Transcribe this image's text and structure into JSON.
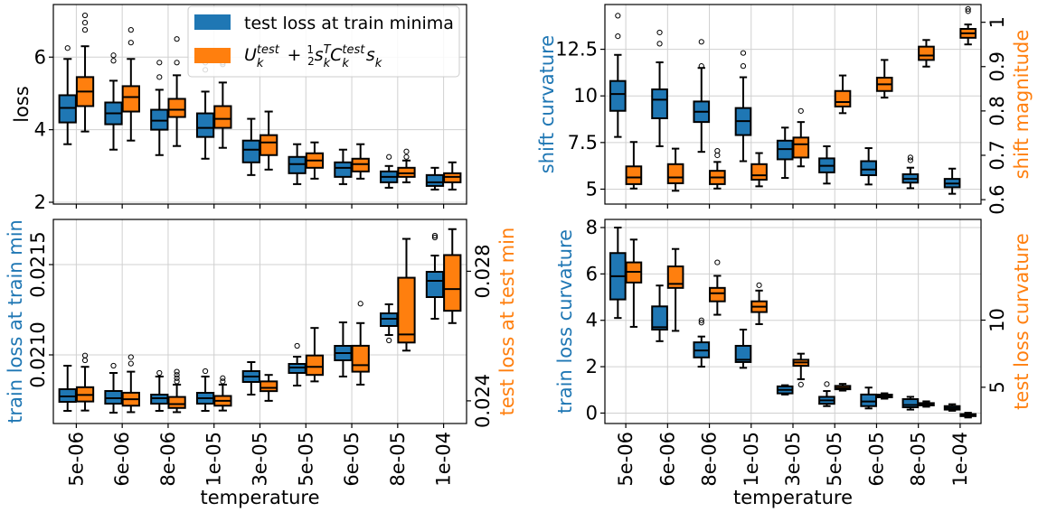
{
  "figure": {
    "xlabel": "temperature",
    "temperatures": [
      "5e-06",
      "6e-06",
      "8e-06",
      "1e-05",
      "3e-05",
      "5e-05",
      "6e-05",
      "8e-05",
      "1e-04"
    ],
    "colors": {
      "blue": "#1f77b4",
      "orange": "#ff7f0e"
    }
  },
  "chart_data": [
    {
      "type": "box",
      "ylabel": "loss",
      "ylim": [
        1.95,
        7.45
      ],
      "yticks": [
        2,
        4,
        6
      ],
      "legend": {
        "placement": "top-center",
        "entries": [
          {
            "label": "test loss at train minima",
            "color": "#1f77b4"
          },
          {
            "label": "U_k^test + 1/2 s_k^T C_k^test s_k",
            "color": "#ff7f0e"
          }
        ]
      },
      "series": [
        {
          "name": "test loss at train minima",
          "axis": "left",
          "boxes": [
            {
              "whislo": 3.6,
              "q1": 4.2,
              "med": 4.6,
              "q3": 4.95,
              "whishi": 5.95,
              "fliers": [
                6.25
              ]
            },
            {
              "whislo": 3.45,
              "q1": 4.15,
              "med": 4.45,
              "q3": 4.75,
              "whishi": 5.35,
              "fliers": [
                5.9,
                6.05
              ]
            },
            {
              "whislo": 3.3,
              "q1": 4.0,
              "med": 4.25,
              "q3": 4.55,
              "whishi": 5.1,
              "fliers": [
                5.45,
                5.85
              ]
            },
            {
              "whislo": 3.2,
              "q1": 3.8,
              "med": 4.05,
              "q3": 4.45,
              "whishi": 5.05,
              "fliers": [
                5.65,
                5.85
              ]
            },
            {
              "whislo": 2.75,
              "q1": 3.1,
              "med": 3.45,
              "q3": 3.7,
              "whishi": 4.3,
              "fliers": []
            },
            {
              "whislo": 2.5,
              "q1": 2.8,
              "med": 3.05,
              "q3": 3.25,
              "whishi": 3.6,
              "fliers": []
            },
            {
              "whislo": 2.5,
              "q1": 2.7,
              "med": 2.95,
              "q3": 3.1,
              "whishi": 3.45,
              "fliers": []
            },
            {
              "whislo": 2.4,
              "q1": 2.55,
              "med": 2.7,
              "q3": 2.85,
              "whishi": 3.0,
              "fliers": [
                3.25
              ]
            },
            {
              "whislo": 2.35,
              "q1": 2.45,
              "med": 2.55,
              "q3": 2.75,
              "whishi": 2.95,
              "fliers": []
            }
          ]
        },
        {
          "name": "U_k^test + 1/2 s_k^T C_k^test s_k",
          "axis": "left",
          "boxes": [
            {
              "whislo": 3.95,
              "q1": 4.65,
              "med": 5.05,
              "q3": 5.45,
              "whishi": 6.3,
              "fliers": [
                6.75,
                6.95,
                7.15
              ]
            },
            {
              "whislo": 3.7,
              "q1": 4.5,
              "med": 4.9,
              "q3": 5.2,
              "whishi": 5.95,
              "fliers": [
                6.4,
                6.75
              ]
            },
            {
              "whislo": 3.55,
              "q1": 4.35,
              "med": 4.55,
              "q3": 4.85,
              "whishi": 5.5,
              "fliers": [
                5.85,
                6.5
              ]
            },
            {
              "whislo": 3.5,
              "q1": 4.05,
              "med": 4.3,
              "q3": 4.65,
              "whishi": 5.3,
              "fliers": [
                5.8,
                5.85,
                6.15
              ]
            },
            {
              "whislo": 2.9,
              "q1": 3.3,
              "med": 3.65,
              "q3": 3.85,
              "whishi": 4.5,
              "fliers": []
            },
            {
              "whislo": 2.65,
              "q1": 2.95,
              "med": 3.15,
              "q3": 3.35,
              "whishi": 3.65,
              "fliers": []
            },
            {
              "whislo": 2.65,
              "q1": 2.85,
              "med": 3.05,
              "q3": 3.2,
              "whishi": 3.6,
              "fliers": []
            },
            {
              "whislo": 2.55,
              "q1": 2.7,
              "med": 2.8,
              "q3": 2.95,
              "whishi": 3.15,
              "fliers": [
                3.25,
                3.4
              ]
            },
            {
              "whislo": 2.35,
              "q1": 2.55,
              "med": 2.7,
              "q3": 2.8,
              "whishi": 3.1,
              "fliers": []
            }
          ]
        }
      ]
    },
    {
      "type": "box",
      "ylabel": "shift curvature",
      "ylabel_right": "shift magnitude",
      "ylim": [
        4.2,
        14.9
      ],
      "yticks": [
        5.0,
        7.5,
        10.0,
        12.5
      ],
      "ylim_right": [
        0.59,
        1.04
      ],
      "yticks_right": [
        0.6,
        0.7,
        0.8,
        0.9,
        1.0
      ],
      "series": [
        {
          "name": "shift curvature",
          "axis": "left",
          "boxes": [
            {
              "whislo": 7.8,
              "q1": 9.2,
              "med": 10.1,
              "q3": 10.8,
              "whishi": 12.2,
              "fliers": [
                13.2,
                14.3
              ]
            },
            {
              "whislo": 7.3,
              "q1": 8.8,
              "med": 9.8,
              "q3": 10.35,
              "whishi": 11.8,
              "fliers": [
                12.8,
                13.4
              ]
            },
            {
              "whislo": 7.0,
              "q1": 8.6,
              "med": 9.15,
              "q3": 9.7,
              "whishi": 11.5,
              "fliers": [
                11.6,
                12.9
              ]
            },
            {
              "whislo": 6.5,
              "q1": 7.9,
              "med": 8.65,
              "q3": 9.35,
              "whishi": 11.0,
              "fliers": [
                11.6,
                12.3
              ]
            },
            {
              "whislo": 5.6,
              "q1": 6.6,
              "med": 7.15,
              "q3": 7.6,
              "whishi": 8.3,
              "fliers": []
            },
            {
              "whislo": 5.3,
              "q1": 5.9,
              "med": 6.25,
              "q3": 6.65,
              "whishi": 7.3,
              "fliers": []
            },
            {
              "whislo": 5.25,
              "q1": 5.75,
              "med": 6.05,
              "q3": 6.5,
              "whishi": 7.2,
              "fliers": []
            },
            {
              "whislo": 5.05,
              "q1": 5.35,
              "med": 5.55,
              "q3": 5.8,
              "whishi": 6.15,
              "fliers": [
                6.55,
                6.7
              ]
            },
            {
              "whislo": 4.75,
              "q1": 5.1,
              "med": 5.3,
              "q3": 5.55,
              "whishi": 6.1,
              "fliers": []
            }
          ]
        },
        {
          "name": "shift magnitude",
          "axis": "right",
          "boxes": [
            {
              "whislo": 0.625,
              "q1": 0.635,
              "med": 0.65,
              "q3": 0.675,
              "whishi": 0.73,
              "fliers": []
            },
            {
              "whislo": 0.62,
              "q1": 0.637,
              "med": 0.65,
              "q3": 0.68,
              "whishi": 0.715,
              "fliers": []
            },
            {
              "whislo": 0.625,
              "q1": 0.635,
              "med": 0.65,
              "q3": 0.665,
              "whishi": 0.685,
              "fliers": [
                0.7,
                0.71
              ]
            },
            {
              "whislo": 0.63,
              "q1": 0.645,
              "med": 0.655,
              "q3": 0.68,
              "whishi": 0.705,
              "fliers": []
            },
            {
              "whislo": 0.675,
              "q1": 0.695,
              "med": 0.725,
              "q3": 0.74,
              "whishi": 0.775,
              "fliers": [
                0.8
              ]
            },
            {
              "whislo": 0.795,
              "q1": 0.81,
              "med": 0.82,
              "q3": 0.845,
              "whishi": 0.88,
              "fliers": []
            },
            {
              "whislo": 0.83,
              "q1": 0.845,
              "med": 0.86,
              "q3": 0.875,
              "whishi": 0.915,
              "fliers": []
            },
            {
              "whislo": 0.9,
              "q1": 0.915,
              "med": 0.925,
              "q3": 0.945,
              "whishi": 0.96,
              "fliers": []
            },
            {
              "whislo": 0.95,
              "q1": 0.965,
              "med": 0.975,
              "q3": 0.985,
              "whishi": 0.995,
              "fliers": [
                1.025,
                1.03
              ]
            }
          ]
        }
      ]
    },
    {
      "type": "box",
      "ylabel": "train loss at train min",
      "ylabel_right": "test loss at test min",
      "ylim": [
        0.02062,
        0.02175
      ],
      "yticks": [
        0.021,
        0.0215
      ],
      "yticklabels": [
        "0.0210",
        "0.0215"
      ],
      "ylim_right": [
        0.0233,
        0.0296
      ],
      "yticks_right": [
        0.024,
        0.028
      ],
      "series": [
        {
          "name": "train loss at train min",
          "axis": "left",
          "boxes": [
            {
              "whislo": 0.02069,
              "q1": 0.02074,
              "med": 0.02077,
              "q3": 0.02081,
              "whishi": 0.02094,
              "fliers": []
            },
            {
              "whislo": 0.02068,
              "q1": 0.02073,
              "med": 0.02076,
              "q3": 0.0208,
              "whishi": 0.0209,
              "fliers": [
                0.02094
              ]
            },
            {
              "whislo": 0.02069,
              "q1": 0.02073,
              "med": 0.02076,
              "q3": 0.02078,
              "whishi": 0.02088,
              "fliers": [
                0.0209
              ]
            },
            {
              "whislo": 0.02069,
              "q1": 0.02073,
              "med": 0.02076,
              "q3": 0.02079,
              "whishi": 0.02088,
              "fliers": [
                0.02091
              ]
            },
            {
              "whislo": 0.02078,
              "q1": 0.02085,
              "med": 0.02088,
              "q3": 0.02091,
              "whishi": 0.02096,
              "fliers": []
            },
            {
              "whislo": 0.02083,
              "q1": 0.0209,
              "med": 0.02093,
              "q3": 0.02095,
              "whishi": 0.02099,
              "fliers": [
                0.02105
              ]
            },
            {
              "whislo": 0.02088,
              "q1": 0.02097,
              "med": 0.02101,
              "q3": 0.02105,
              "whishi": 0.02118,
              "fliers": []
            },
            {
              "whislo": 0.02111,
              "q1": 0.02116,
              "med": 0.0212,
              "q3": 0.02123,
              "whishi": 0.02128,
              "fliers": [
                0.02108
              ]
            },
            {
              "whislo": 0.0212,
              "q1": 0.02132,
              "med": 0.02141,
              "q3": 0.02146,
              "whishi": 0.02155,
              "fliers": [
                0.02165,
                0.02166
              ]
            }
          ]
        },
        {
          "name": "test loss at test min",
          "axis": "right",
          "boxes": [
            {
              "whislo": 0.0237,
              "q1": 0.02398,
              "med": 0.02418,
              "q3": 0.02442,
              "whishi": 0.02505,
              "fliers": [
                0.02525,
                0.0254
              ]
            },
            {
              "whislo": 0.02365,
              "q1": 0.02385,
              "med": 0.02405,
              "q3": 0.02425,
              "whishi": 0.0249,
              "fliers": [
                0.02515,
                0.02535
              ]
            },
            {
              "whislo": 0.02365,
              "q1": 0.02378,
              "med": 0.0239,
              "q3": 0.02412,
              "whishi": 0.0245,
              "fliers": [
                0.0246,
                0.0247,
                0.0248,
                0.0249
              ]
            },
            {
              "whislo": 0.0237,
              "q1": 0.02385,
              "med": 0.024,
              "q3": 0.02415,
              "whishi": 0.0245,
              "fliers": [
                0.0246,
                0.0247
              ]
            },
            {
              "whislo": 0.024,
              "q1": 0.0243,
              "med": 0.0244,
              "q3": 0.0246,
              "whishi": 0.0248,
              "fliers": []
            },
            {
              "whislo": 0.0246,
              "q1": 0.0248,
              "med": 0.02505,
              "q3": 0.0254,
              "whishi": 0.02625,
              "fliers": []
            },
            {
              "whislo": 0.0245,
              "q1": 0.0249,
              "med": 0.0251,
              "q3": 0.0257,
              "whishi": 0.0264,
              "fliers": [
                0.027
              ]
            },
            {
              "whislo": 0.02555,
              "q1": 0.0258,
              "med": 0.02605,
              "q3": 0.0278,
              "whishi": 0.029,
              "fliers": []
            },
            {
              "whislo": 0.0264,
              "q1": 0.02678,
              "med": 0.02745,
              "q3": 0.0285,
              "whishi": 0.0293,
              "fliers": []
            }
          ]
        }
      ]
    },
    {
      "type": "box",
      "ylabel": "train loss curvature",
      "ylabel_right": "test loss curvature",
      "ylim": [
        -0.45,
        8.35
      ],
      "yticks": [
        0,
        2,
        4,
        6,
        8
      ],
      "ylim_right": [
        2.3,
        17.5
      ],
      "yticks_right": [
        5,
        10
      ],
      "series": [
        {
          "name": "train loss curvature",
          "axis": "left",
          "boxes": [
            {
              "whislo": 4.1,
              "q1": 4.9,
              "med": 5.9,
              "q3": 6.9,
              "whishi": 8.0,
              "fliers": []
            },
            {
              "whislo": 3.1,
              "q1": 3.6,
              "med": 3.7,
              "q3": 4.6,
              "whishi": 5.5,
              "fliers": []
            },
            {
              "whislo": 2.0,
              "q1": 2.4,
              "med": 2.7,
              "q3": 3.05,
              "whishi": 3.3,
              "fliers": [
                3.9,
                4.0
              ]
            },
            {
              "whislo": 1.95,
              "q1": 2.2,
              "med": 2.3,
              "q3": 2.9,
              "whishi": 3.6,
              "fliers": []
            },
            {
              "whislo": 0.8,
              "q1": 0.85,
              "med": 1.0,
              "q3": 1.15,
              "whishi": 1.2,
              "fliers": []
            },
            {
              "whislo": 0.3,
              "q1": 0.4,
              "med": 0.55,
              "q3": 0.7,
              "whishi": 0.95,
              "fliers": [
                1.25
              ]
            },
            {
              "whislo": 0.2,
              "q1": 0.3,
              "med": 0.5,
              "q3": 0.8,
              "whishi": 1.1,
              "fliers": []
            },
            {
              "whislo": 0.15,
              "q1": 0.25,
              "med": 0.35,
              "q3": 0.6,
              "whishi": 0.7,
              "fliers": []
            },
            {
              "whislo": 0.1,
              "q1": 0.15,
              "med": 0.22,
              "q3": 0.3,
              "whishi": 0.38,
              "fliers": []
            }
          ]
        },
        {
          "name": "test loss curvature",
          "axis": "right",
          "boxes": [
            {
              "whislo": 9.5,
              "q1": 12.8,
              "med": 13.6,
              "q3": 14.3,
              "whishi": 16.0,
              "fliers": []
            },
            {
              "whislo": 9.2,
              "q1": 12.4,
              "med": 12.7,
              "q3": 14.0,
              "whishi": 15.3,
              "fliers": []
            },
            {
              "whislo": 10.4,
              "q1": 11.4,
              "med": 12.0,
              "q3": 12.4,
              "whishi": 13.3,
              "fliers": [
                14.3
              ]
            },
            {
              "whislo": 9.7,
              "q1": 10.6,
              "med": 11.0,
              "q3": 11.4,
              "whishi": 12.2,
              "fliers": [
                12.6
              ]
            },
            {
              "whislo": 5.6,
              "q1": 6.6,
              "med": 6.85,
              "q3": 7.05,
              "whishi": 7.5,
              "fliers": [
                5.2
              ]
            },
            {
              "whislo": 4.75,
              "q1": 4.85,
              "med": 4.95,
              "q3": 5.1,
              "whishi": 5.25,
              "fliers": []
            },
            {
              "whislo": 4.15,
              "q1": 4.25,
              "med": 4.35,
              "q3": 4.45,
              "whishi": 4.55,
              "fliers": []
            },
            {
              "whislo": 3.55,
              "q1": 3.65,
              "med": 3.72,
              "q3": 3.82,
              "whishi": 3.95,
              "fliers": []
            },
            {
              "whislo": 2.75,
              "q1": 2.85,
              "med": 2.92,
              "q3": 3.0,
              "whishi": 3.1,
              "fliers": []
            }
          ]
        }
      ]
    }
  ]
}
